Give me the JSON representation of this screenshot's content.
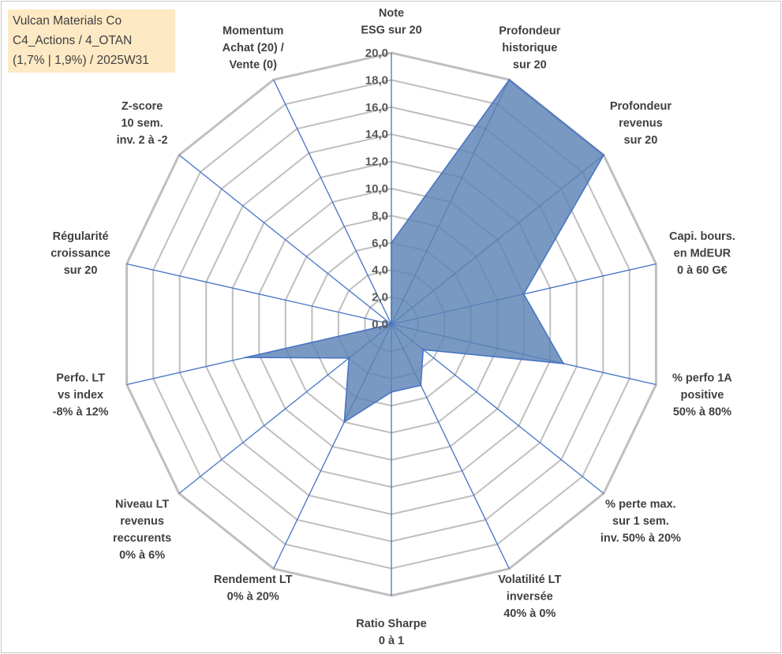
{
  "header": {
    "line1": "Vulcan Materials Co",
    "line2": "C4_Actions / 4_OTAN",
    "line3": "(1,7% | 1,9%) / 2025W31"
  },
  "chart_data": {
    "type": "radar",
    "rlim": [
      0,
      20
    ],
    "ticks": [
      "0,0",
      "2,0",
      "4,0",
      "6,0",
      "8,0",
      "10,0",
      "12,0",
      "14,0",
      "16,0",
      "18,0",
      "20,0"
    ],
    "grid": true,
    "colors": {
      "fill": "#5b82b5",
      "stroke": "#4472c4",
      "grid": "#bfbfbf",
      "spoke": "#4472c4"
    },
    "axes": [
      {
        "label": [
          "Note",
          "ESG sur 20"
        ]
      },
      {
        "label": [
          "Profondeur",
          "historique",
          "sur 20"
        ]
      },
      {
        "label": [
          "Profondeur",
          "revenus",
          "sur 20"
        ]
      },
      {
        "label": [
          "Capi. bours.",
          "en MdEUR",
          "0 à 60 G€"
        ]
      },
      {
        "label": [
          "% perfo 1A",
          "positive",
          "50% à 80%"
        ]
      },
      {
        "label": [
          "% perte max.",
          "sur 1 sem.",
          "inv. 50% à 20%"
        ]
      },
      {
        "label": [
          "Volatilité LT",
          "inversée",
          "40% à 0%"
        ]
      },
      {
        "label": [
          "Ratio Sharpe",
          "0 à 1"
        ]
      },
      {
        "label": [
          "Rendement LT",
          "0% à 20%"
        ]
      },
      {
        "label": [
          "Niveau LT",
          "revenus",
          "reccurents",
          "0% à 6%"
        ]
      },
      {
        "label": [
          "Perfo. LT",
          "vs index",
          "-8% à 12%"
        ]
      },
      {
        "label": [
          "Régularité",
          "croissance",
          "sur 20"
        ]
      },
      {
        "label": [
          "Z-score",
          "10 sem.",
          "inv. 2 à -2"
        ]
      },
      {
        "label": [
          "Momentum",
          "Achat (20) /",
          "Vente (0)"
        ]
      }
    ],
    "series": [
      {
        "values": [
          6.0,
          20.0,
          20.0,
          10.0,
          13.0,
          3.0,
          5.0,
          5.0,
          8.0,
          4.0,
          11.0,
          0.0,
          0.0,
          0.0
        ]
      }
    ]
  }
}
